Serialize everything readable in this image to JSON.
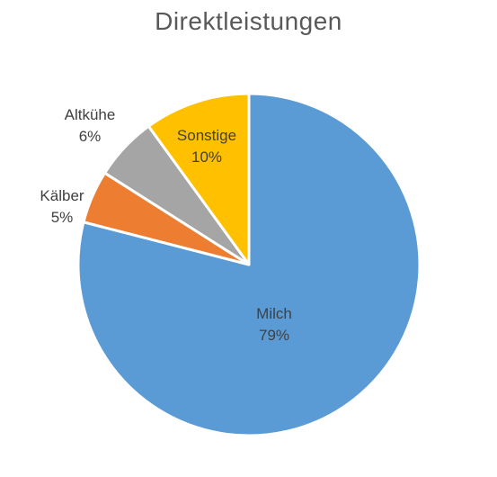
{
  "chart_data": {
    "type": "pie",
    "title": "Direktleistungen",
    "slices": [
      {
        "label": "Milch",
        "value": 79,
        "percent_label": "79%",
        "color": "#5B9BD5"
      },
      {
        "label": "Kälber",
        "value": 5,
        "percent_label": "5%",
        "color": "#ED7D31"
      },
      {
        "label": "Altkühe",
        "value": 6,
        "percent_label": "6%",
        "color": "#A5A5A5"
      },
      {
        "label": "Sonstige",
        "value": 10,
        "percent_label": "10%",
        "color": "#FFC000"
      }
    ],
    "legend": "none",
    "start_angle_deg": 0,
    "direction": "clockwise"
  }
}
